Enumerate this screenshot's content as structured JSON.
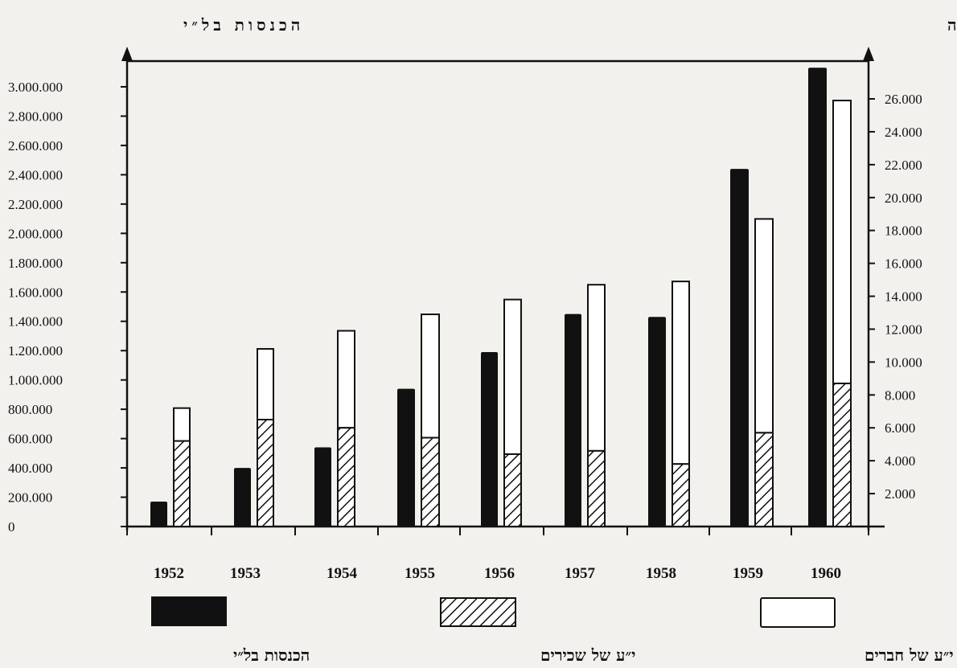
{
  "chart_data": {
    "type": "bar",
    "left_axis_title": "הכנסות בל״י",
    "right_axis_title": "ימי עבודה",
    "categories": [
      "1952",
      "1953",
      "1954",
      "1955",
      "1956",
      "1957",
      "1958",
      "1959",
      "1960"
    ],
    "left_axis": {
      "ylim": [
        0,
        3000000
      ],
      "ticks": [
        0,
        200000,
        400000,
        600000,
        800000,
        1000000,
        1200000,
        1400000,
        1600000,
        1800000,
        2000000,
        2200000,
        2400000,
        2600000,
        2800000,
        3000000
      ],
      "tick_labels": [
        "0",
        "200.000",
        "400.000",
        "600.000",
        "800.000",
        "1.000.000",
        "1.200.000",
        "1.400.000",
        "1.600.000",
        "1.800.000",
        "2.000.000",
        "2.200.000",
        "2.400.000",
        "2.600.000",
        "2.800.000",
        "3.000.000"
      ]
    },
    "right_axis": {
      "ylim": [
        0,
        27000
      ],
      "ticks": [
        2000,
        4000,
        6000,
        8000,
        10000,
        12000,
        14000,
        16000,
        18000,
        20000,
        22000,
        24000,
        26000
      ],
      "tick_labels": [
        "2.000",
        "4.000",
        "6.000",
        "8.000",
        "10.000",
        "12.000",
        "14.000",
        "16.000",
        "18.000",
        "20.000",
        "22.000",
        "24.000",
        "26.000"
      ]
    },
    "series": [
      {
        "name": "הכנסות בל״י",
        "axis": "left",
        "style": "solid",
        "values": [
          170000,
          400000,
          540000,
          940000,
          1190000,
          1450000,
          1430000,
          2440000,
          3130000
        ]
      },
      {
        "name": "י״ע של שכירים",
        "axis": "right",
        "style": "hatched",
        "stack": "workdays",
        "values": [
          5200,
          6500,
          6000,
          5400,
          4400,
          4600,
          3800,
          5700,
          8700
        ]
      },
      {
        "name": "י״ע של חברים",
        "axis": "right",
        "style": "outline",
        "stack": "workdays",
        "values": [
          2000,
          4300,
          5900,
          7500,
          9400,
          10100,
          11100,
          13000,
          17200
        ]
      }
    ],
    "legend_position": "bottom",
    "grid": false,
    "colors": {
      "solid": "#111111",
      "hatch": "#111111",
      "outline_fill": "#ffffff",
      "background": "#f2f1ee"
    }
  }
}
